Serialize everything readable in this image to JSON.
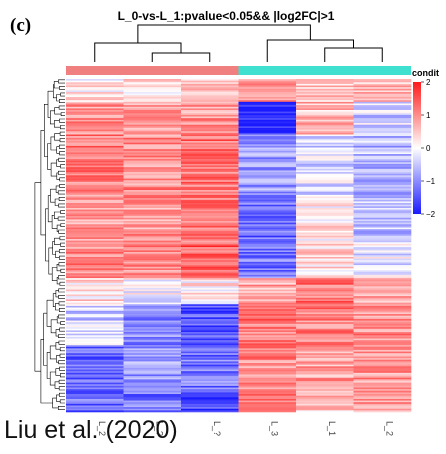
{
  "panel_label": "(c)",
  "credit": "Liu et al. (2020)",
  "chart_data": {
    "type": "heatmap",
    "title": "L_0-vs-L_1:pvalue<0.05&& |log2FC|>1",
    "columns": [
      "L_2",
      "L_?",
      "L_?",
      "L_3",
      "L_1",
      "L_2"
    ],
    "column_annotation": {
      "label": "condit",
      "groups": [
        {
          "columns": [
            0,
            1,
            2
          ],
          "color": "#f08080"
        },
        {
          "columns": [
            3,
            4,
            5
          ],
          "color": "#40e0d0"
        }
      ]
    },
    "color_scale": {
      "ticks": [
        2,
        1,
        0,
        -1,
        -2
      ],
      "tick_labels": [
        "2",
        "1",
        "0",
        "−1",
        "−2"
      ],
      "low_color": "#1a1aff",
      "mid_color": "#ffffff",
      "high_color": "#ff1a1a",
      "range": [
        -2,
        2
      ]
    },
    "row_blocks": [
      {
        "rows": 14,
        "values": [
          0.2,
          0.3,
          0.4,
          0.9,
          0.5,
          0.6
        ]
      },
      {
        "rows": 20,
        "values": [
          1.0,
          0.8,
          0.9,
          -2.0,
          0.6,
          -0.4
        ]
      },
      {
        "rows": 40,
        "values": [
          1.1,
          1.0,
          1.2,
          -0.9,
          -0.3,
          -0.6
        ]
      },
      {
        "rows": 26,
        "values": [
          0.8,
          0.9,
          1.2,
          -1.3,
          0.2,
          -0.5
        ]
      },
      {
        "rows": 22,
        "values": [
          1.0,
          1.1,
          1.4,
          -1.2,
          0.3,
          -0.2
        ]
      },
      {
        "rows": 16,
        "values": [
          0.3,
          -0.1,
          0.2,
          0.8,
          1.2,
          0.7
        ]
      },
      {
        "rows": 26,
        "values": [
          -0.4,
          -1.0,
          -1.4,
          1.2,
          1.1,
          1.0
        ]
      },
      {
        "rows": 28,
        "values": [
          -1.3,
          -0.9,
          -1.2,
          1.0,
          0.8,
          0.9
        ]
      },
      {
        "rows": 12,
        "values": [
          -1.3,
          -1.2,
          -1.6,
          1.1,
          0.5,
          0.8
        ]
      }
    ]
  }
}
